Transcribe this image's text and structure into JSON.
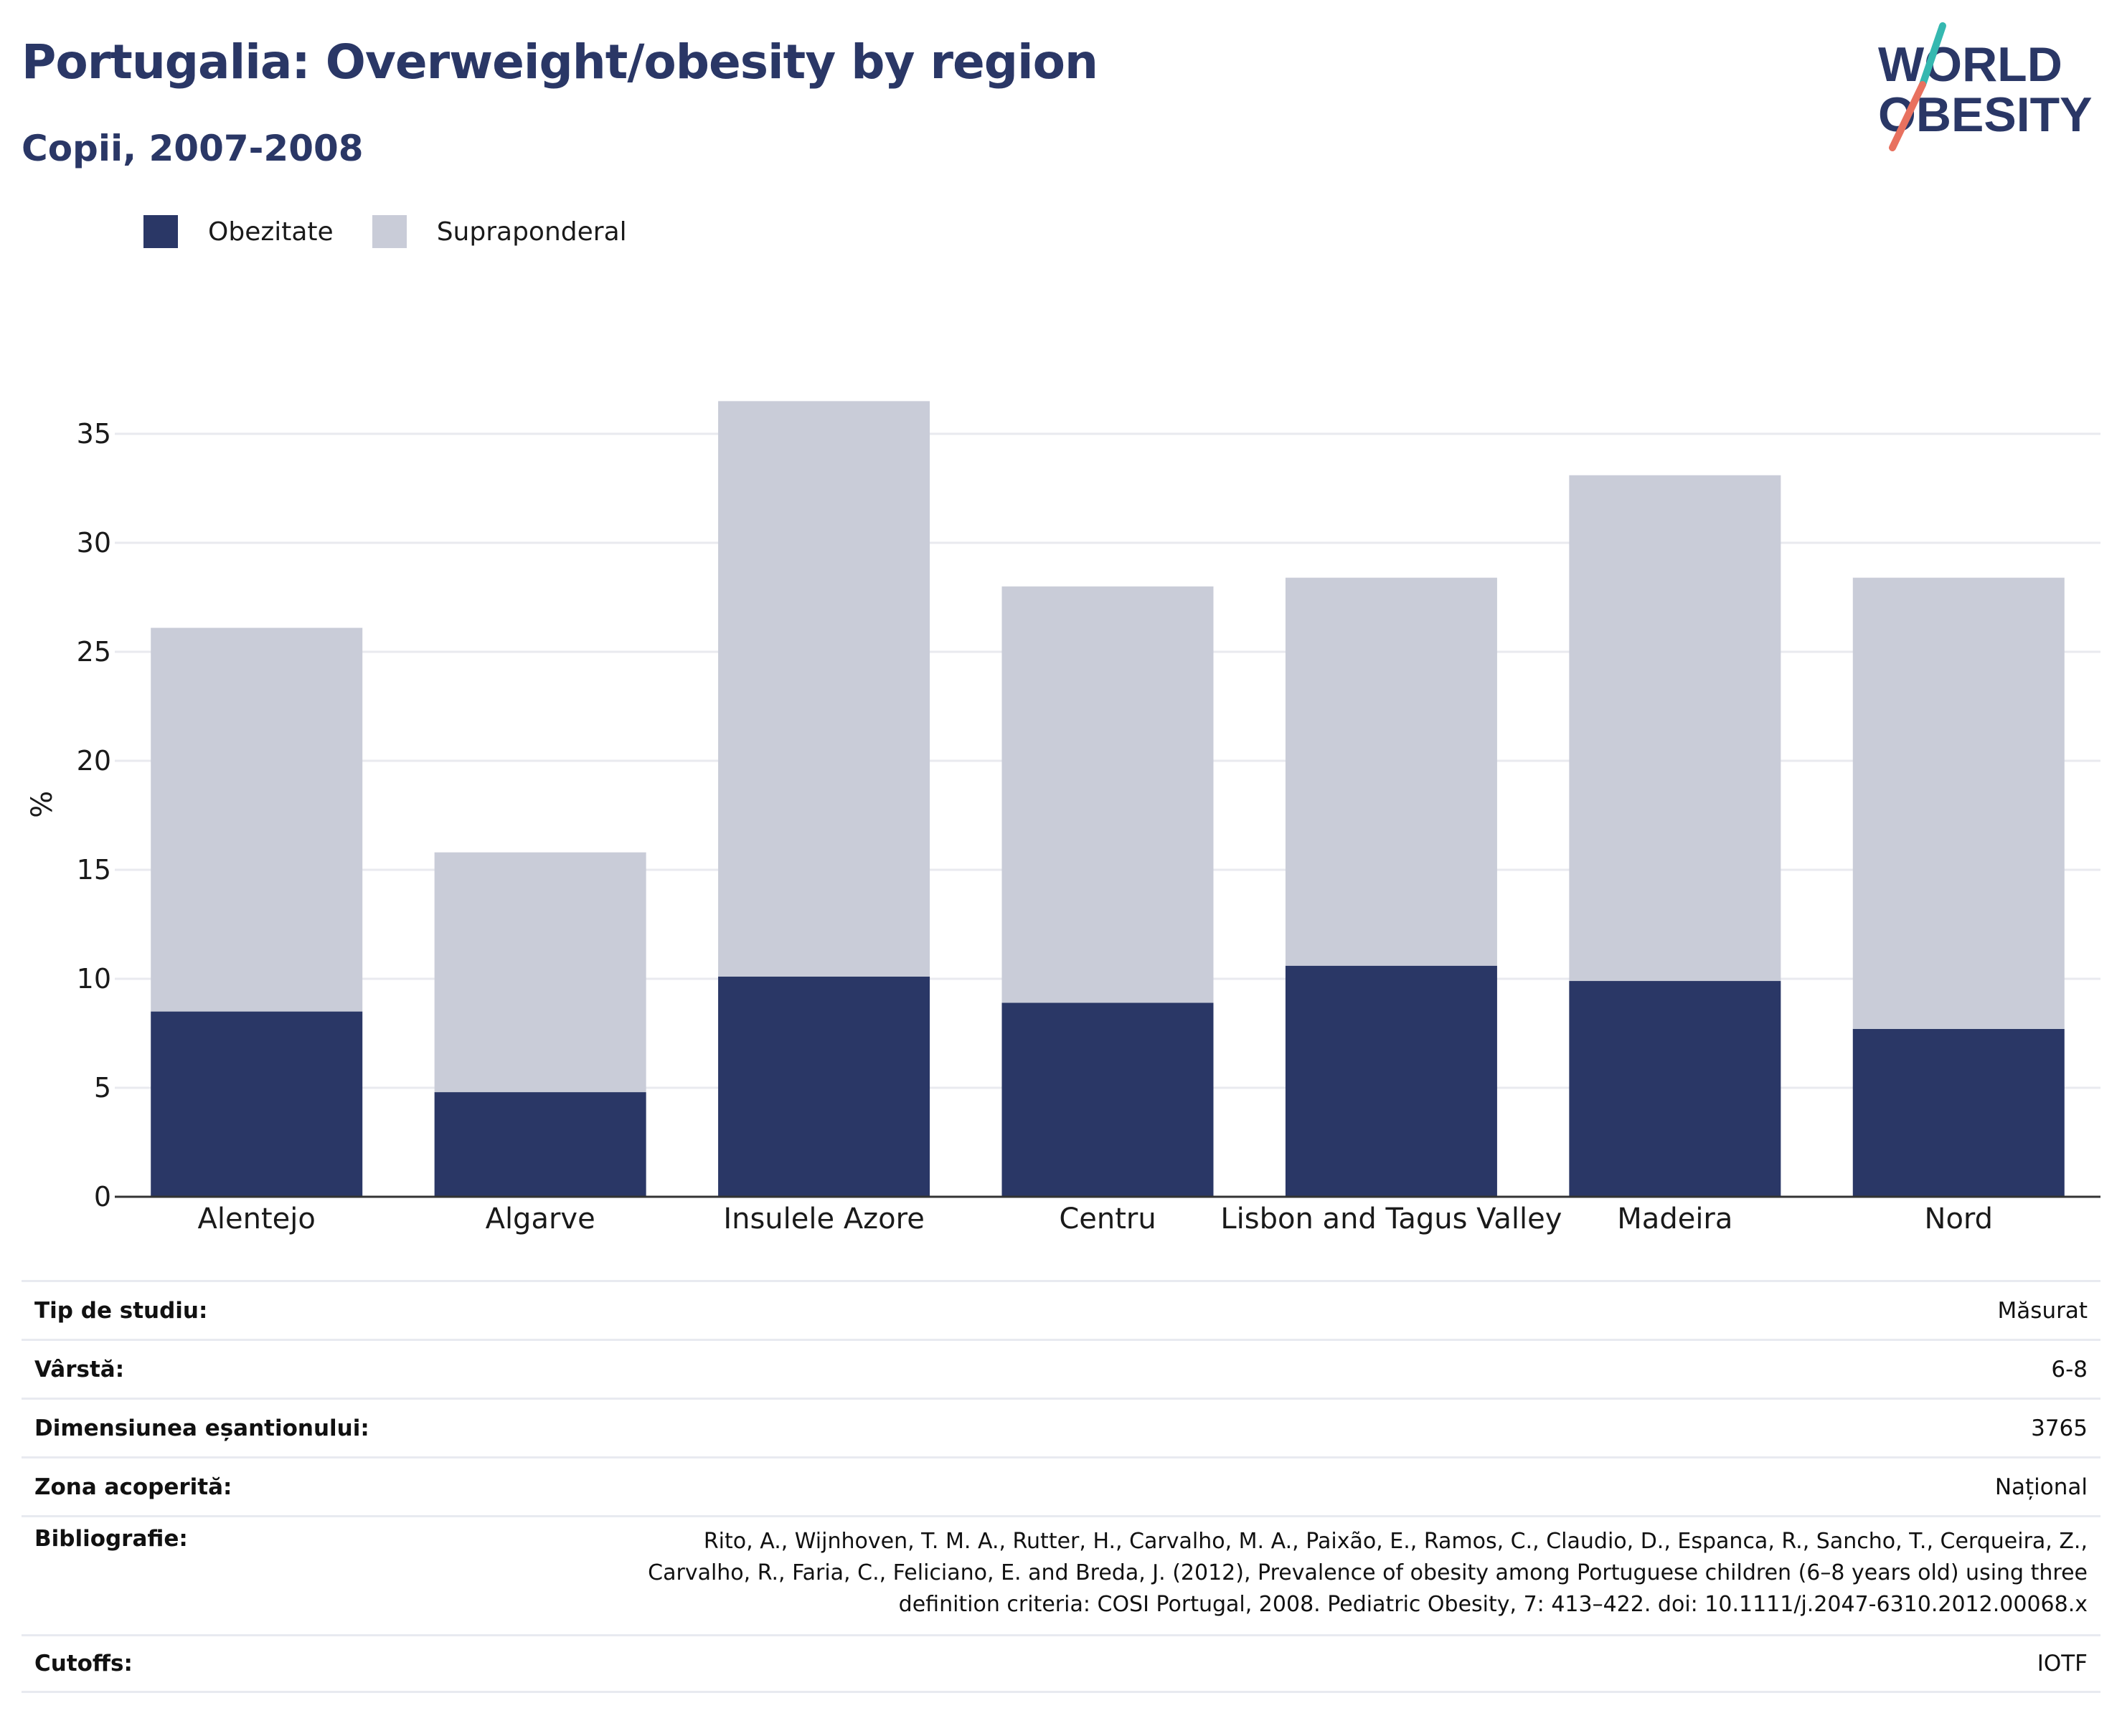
{
  "header": {
    "title": "Portugalia: Overweight/obesity by region",
    "subtitle": "Copii, 2007-2008"
  },
  "logo": {
    "line1": "WORLD",
    "line2": "OBESITY",
    "colors": {
      "text": "#2a3766",
      "slash_top": "#35b8b0",
      "slash_bottom": "#e8715f"
    }
  },
  "colors": {
    "obesity": "#2a3766",
    "overweight": "#c9ccd8",
    "grid": "#e9eaef",
    "axis": "#333333"
  },
  "chart_data": {
    "type": "bar",
    "stacked": true,
    "categories": [
      "Alentejo",
      "Algarve",
      "Insulele Azore",
      "Centru",
      "Lisbon and Tagus Valley",
      "Madeira",
      "Nord"
    ],
    "series": [
      {
        "name": "Obezitate",
        "values": [
          8.5,
          4.8,
          10.1,
          8.9,
          10.6,
          9.9,
          7.7
        ]
      },
      {
        "name": "Supraponderal",
        "values": [
          17.6,
          11.0,
          26.4,
          19.1,
          17.8,
          23.2,
          20.7
        ]
      }
    ],
    "ylabel": "%",
    "ylim": [
      0,
      37
    ],
    "yticks": [
      0,
      5,
      10,
      15,
      20,
      25,
      30,
      35
    ],
    "grid": true,
    "legend_position": "top-left"
  },
  "info": [
    {
      "label": "Tip de studiu:",
      "value": "Măsurat"
    },
    {
      "label": "Vârstă:",
      "value": "6-8"
    },
    {
      "label": "Dimensiunea eșantionului:",
      "value": "3765"
    },
    {
      "label": "Zona acoperită:",
      "value": "Național"
    },
    {
      "label": "Bibliografie:",
      "value": "Rito, A., Wijnhoven, T. M. A., Rutter, H., Carvalho, M. A., Paixão, E., Ramos, C., Claudio, D., Espanca, R., Sancho, T., Cerqueira, Z., Carvalho, R., Faria, C., Feliciano, E. and Breda, J. (2012), Prevalence of obesity among Portuguese children (6–8 years old) using three definition criteria: COSI Portugal, 2008. Pediatric Obesity, 7: 413–422. doi: 10.1111/j.2047-6310.2012.00068.x"
    },
    {
      "label": "Cutoffs:",
      "value": "IOTF"
    }
  ]
}
